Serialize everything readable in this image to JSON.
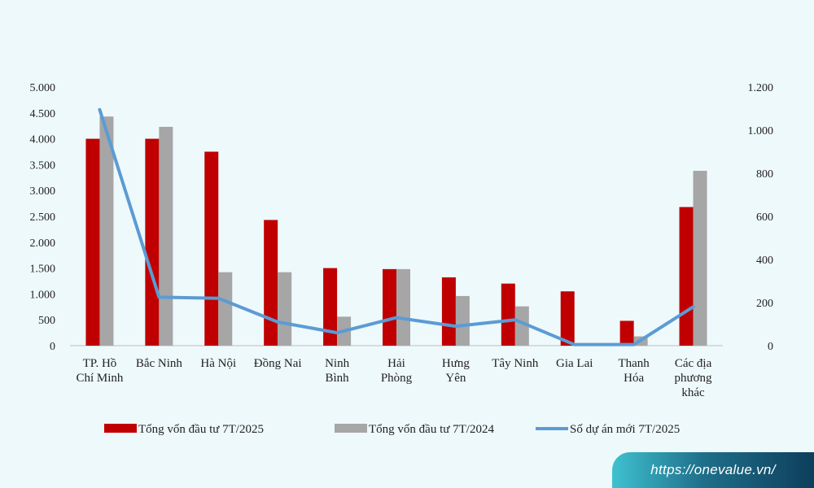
{
  "chart_data": {
    "type": "bar",
    "categories": [
      [
        "TP. Hồ",
        "Chí Minh"
      ],
      [
        "Bắc Ninh"
      ],
      [
        "Hà Nội"
      ],
      [
        "Đồng Nai"
      ],
      [
        "Ninh",
        "Bình"
      ],
      [
        "Hải",
        "Phòng"
      ],
      [
        "Hưng",
        "Yên"
      ],
      [
        "Tây Ninh"
      ],
      [
        "Gia Lai"
      ],
      [
        "Thanh",
        "Hóa"
      ],
      [
        "Các địa",
        "phương",
        "khác"
      ]
    ],
    "series": [
      {
        "name": "Tổng vốn đầu tư 7T/2025",
        "type": "bar",
        "axis": "left",
        "color": "#c00000",
        "values": [
          4000,
          4000,
          3750,
          2430,
          1500,
          1480,
          1320,
          1200,
          1050,
          480,
          2680
        ]
      },
      {
        "name": "Tổng vốn đầu tư  7T/2024",
        "type": "bar",
        "axis": "left",
        "color": "#a6a6a6",
        "values": [
          4430,
          4230,
          1420,
          1420,
          560,
          1480,
          960,
          760,
          0,
          180,
          3380
        ]
      },
      {
        "name": "Số dự án mới 7T/2025",
        "type": "line",
        "axis": "right",
        "color": "#5b9bd5",
        "values": [
          1095,
          225,
          220,
          110,
          60,
          130,
          90,
          120,
          5,
          5,
          180
        ]
      }
    ],
    "y_left": {
      "min": 0,
      "max": 5000,
      "ticks": [
        0,
        500,
        1000,
        1500,
        2000,
        2500,
        3000,
        3500,
        4000,
        4500,
        5000
      ],
      "tick_labels": [
        "0",
        "500",
        "1.000",
        "1.500",
        "2.000",
        "2.500",
        "3.000",
        "3.500",
        "4.000",
        "4.500",
        "5.000"
      ]
    },
    "y_right": {
      "min": 0,
      "max": 1200,
      "ticks": [
        0,
        200,
        400,
        600,
        800,
        1000,
        1200
      ],
      "tick_labels": [
        "0",
        "200",
        "400",
        "600",
        "800",
        "1.000",
        "1.200"
      ]
    },
    "grid": false,
    "legend_position": "bottom"
  },
  "watermark": "https://onevalue.vn/"
}
